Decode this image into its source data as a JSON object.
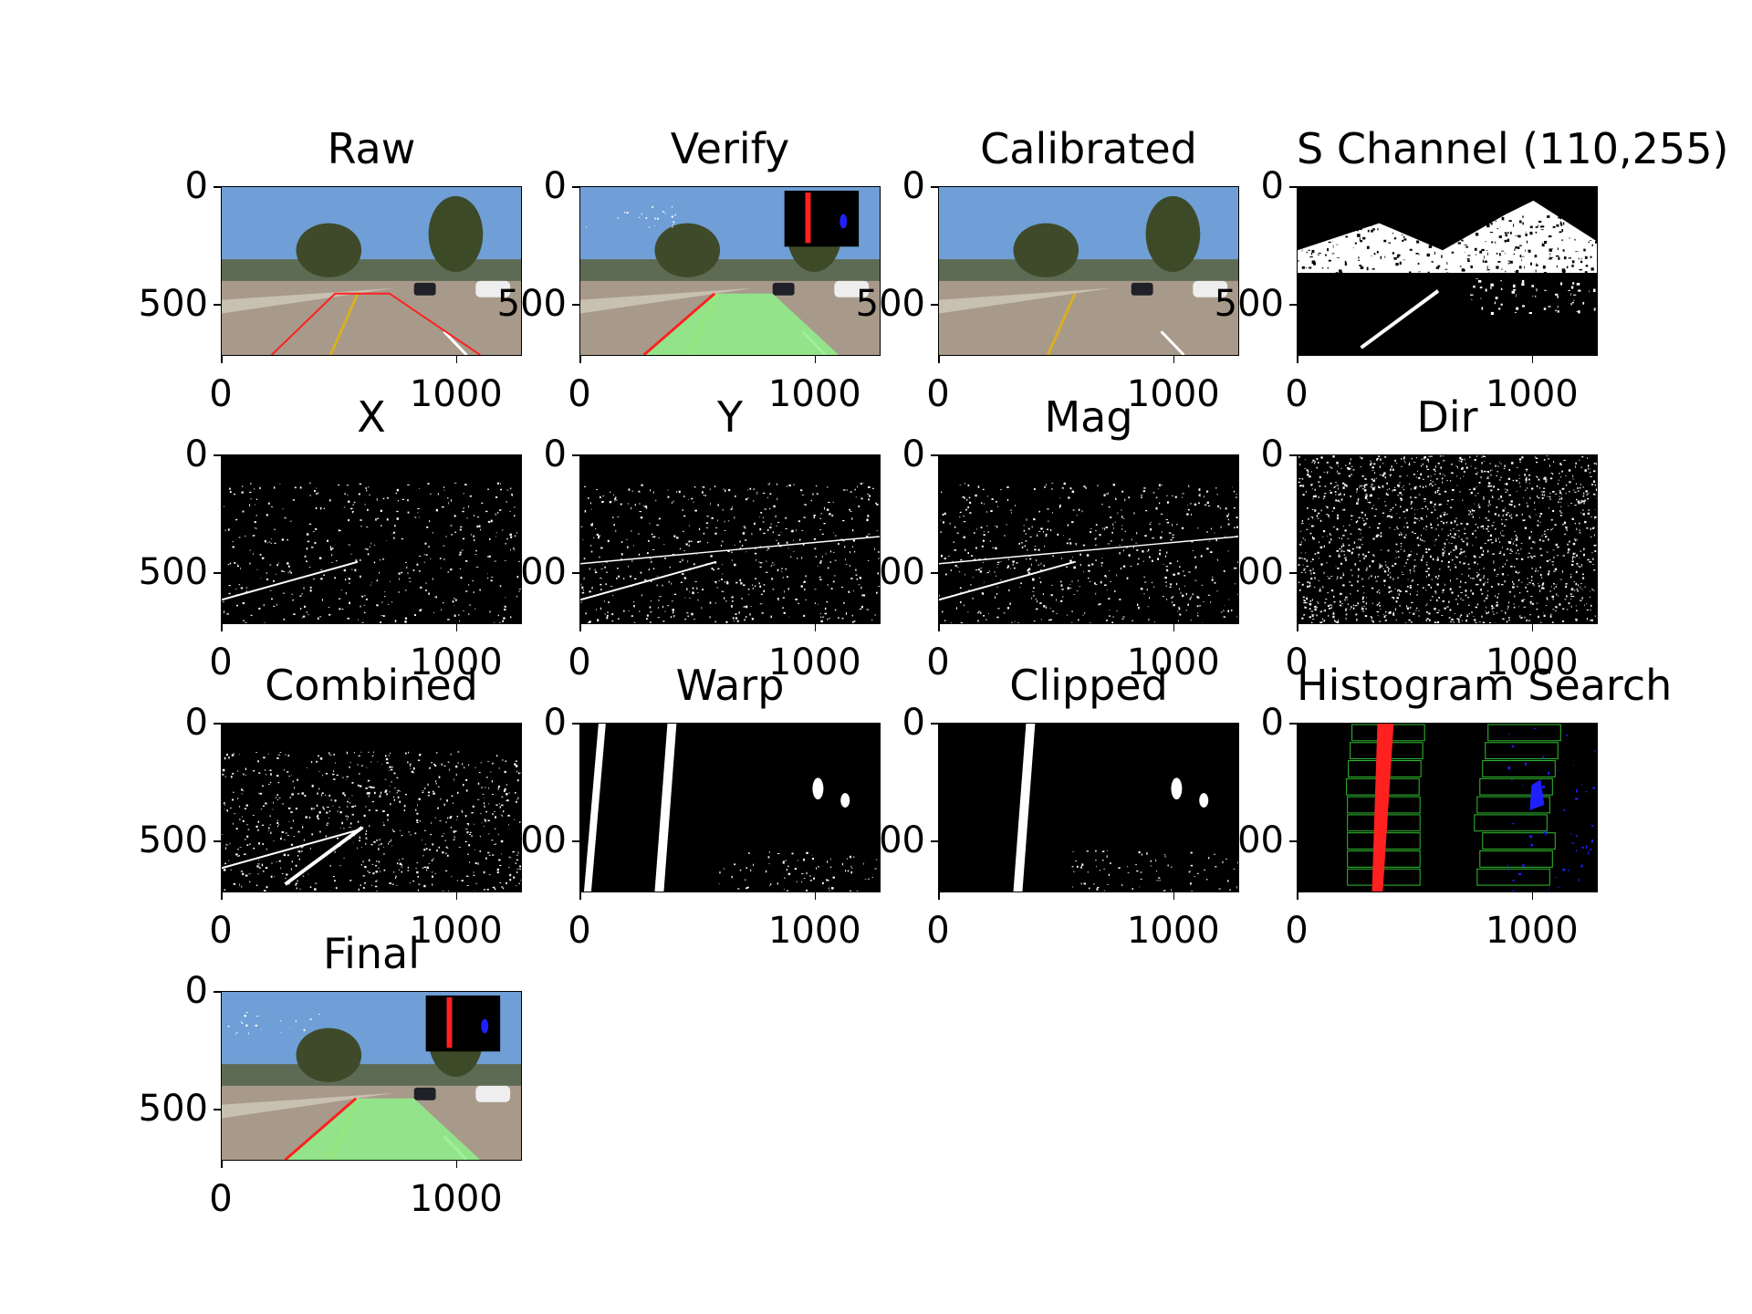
{
  "figure": {
    "panels": [
      {
        "title": "Raw",
        "kind": "road-red"
      },
      {
        "title": "Verify",
        "kind": "road-green-inset"
      },
      {
        "title": "Calibrated",
        "kind": "road"
      },
      {
        "title": "S Channel (110,255)",
        "kind": "schannel"
      },
      {
        "title": "X",
        "kind": "edges-x"
      },
      {
        "title": "Y",
        "kind": "edges-y"
      },
      {
        "title": "Mag",
        "kind": "edges-y"
      },
      {
        "title": "Dir",
        "kind": "noise"
      },
      {
        "title": "Combined",
        "kind": "combined"
      },
      {
        "title": "Warp",
        "kind": "warp"
      },
      {
        "title": "Clipped",
        "kind": "clipped"
      },
      {
        "title": "Histogram Search",
        "kind": "histogram"
      },
      {
        "title": "Final",
        "kind": "road-green-inset"
      }
    ],
    "y_ticks": [
      "0",
      "500"
    ],
    "x_ticks": [
      "0",
      "1000"
    ],
    "image_width": 1280,
    "image_height": 720,
    "colors": {
      "sky": "#6f9fd6",
      "road": "#a89a8a",
      "lane_fill": "#8ef08a",
      "left_line": "#ff2020",
      "right_line": "#2020ff",
      "window_box": "#30c030"
    }
  }
}
